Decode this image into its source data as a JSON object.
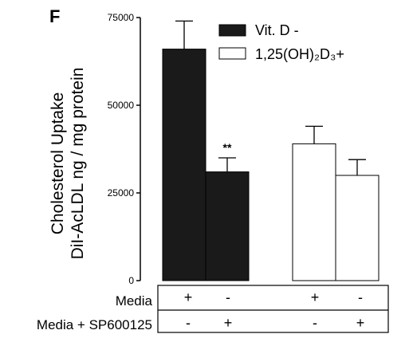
{
  "panel_letter": "F",
  "chart_data": {
    "type": "bar",
    "ylabel_line1": "Cholesterol Uptake",
    "ylabel_line2": "DiI-AcLDL ng / mg protein",
    "ylim": [
      0,
      75000
    ],
    "yticks": [
      0,
      25000,
      50000,
      75000
    ],
    "ytick_labels": [
      "0",
      "25000",
      "50000",
      "75000"
    ],
    "legend_placement": "top-right",
    "series": [
      {
        "name": "Vit. D -",
        "fill": "#1a1a1a"
      },
      {
        "name": "1,25(OH)₂D₃+",
        "fill": "#ffffff"
      }
    ],
    "bars": [
      {
        "series": 0,
        "value": 66000,
        "error": 8000,
        "annotation": ""
      },
      {
        "series": 0,
        "value": 31000,
        "error": 4000,
        "annotation": "**"
      },
      {
        "series": 1,
        "value": 39000,
        "error": 5000,
        "annotation": ""
      },
      {
        "series": 1,
        "value": 30000,
        "error": 4500,
        "annotation": ""
      }
    ],
    "condition_table": {
      "rows": [
        {
          "label": "Media",
          "signs": [
            "+",
            "-",
            "+",
            "-"
          ]
        },
        {
          "label": "Media + SP600125",
          "signs": [
            "-",
            "+",
            "-",
            "+"
          ]
        }
      ]
    }
  },
  "colors": {
    "axis": "#000000",
    "dark_bar": "#1a1a1a",
    "light_bar": "#ffffff"
  }
}
